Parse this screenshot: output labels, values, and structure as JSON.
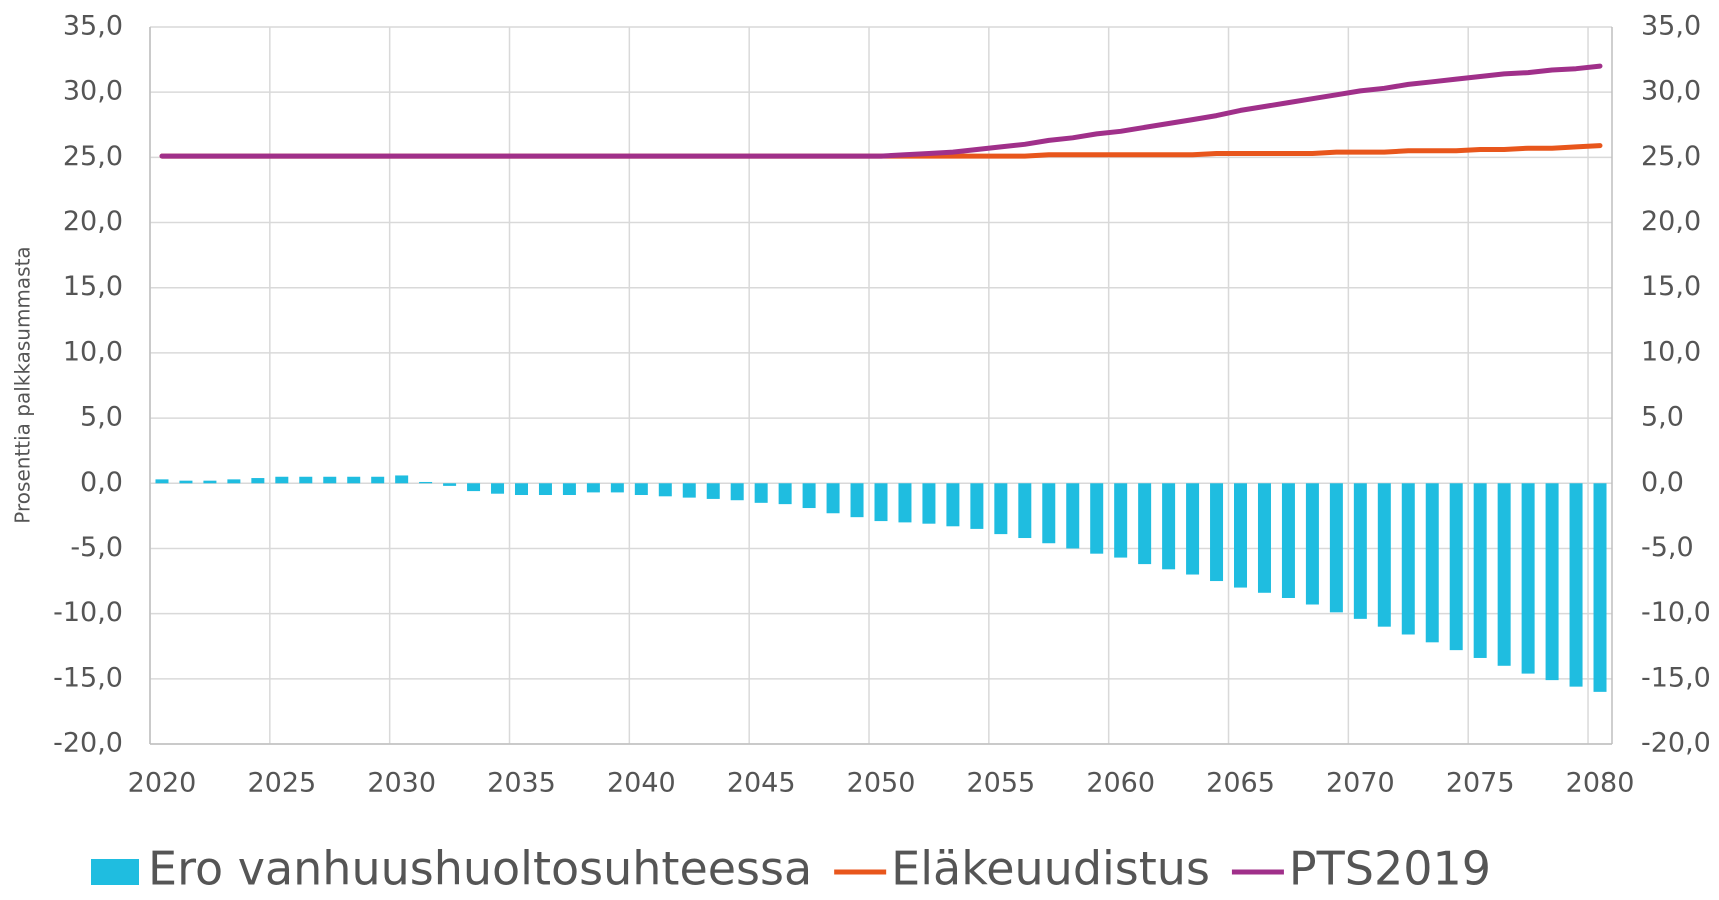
{
  "chart_data": {
    "type": "bar_line",
    "y_label": "Prosenttia palkkasummasta",
    "x": [
      2020,
      2021,
      2022,
      2023,
      2024,
      2025,
      2026,
      2027,
      2028,
      2029,
      2030,
      2031,
      2032,
      2033,
      2034,
      2035,
      2036,
      2037,
      2038,
      2039,
      2040,
      2041,
      2042,
      2043,
      2044,
      2045,
      2046,
      2047,
      2048,
      2049,
      2050,
      2051,
      2052,
      2053,
      2054,
      2055,
      2056,
      2057,
      2058,
      2059,
      2060,
      2061,
      2062,
      2063,
      2064,
      2065,
      2066,
      2067,
      2068,
      2069,
      2070,
      2071,
      2072,
      2073,
      2074,
      2075,
      2076,
      2077,
      2078,
      2079,
      2080
    ],
    "xlim": [
      2020,
      2081
    ],
    "xticks": [
      2020,
      2025,
      2030,
      2035,
      2040,
      2045,
      2050,
      2055,
      2060,
      2065,
      2070,
      2075,
      2080
    ],
    "ylim": [
      -20,
      35
    ],
    "yticks": [
      {
        "value": -20,
        "label": "-20,0"
      },
      {
        "value": -15,
        "label": "-15,0"
      },
      {
        "value": -10,
        "label": "-10,0"
      },
      {
        "value": -5,
        "label": "-5,0"
      },
      {
        "value": 0,
        "label": "0,0"
      },
      {
        "value": 5,
        "label": "5,0"
      },
      {
        "value": 10,
        "label": "10,0"
      },
      {
        "value": 15,
        "label": "15,0"
      },
      {
        "value": 20,
        "label": "20,0"
      },
      {
        "value": 25,
        "label": "25,0"
      },
      {
        "value": 30,
        "label": "30,0"
      },
      {
        "value": 35,
        "label": "35,0"
      }
    ],
    "grid": true,
    "legend": "bottom",
    "series": [
      {
        "name": "Ero vanhuushuoltosuhteessa",
        "type": "bar",
        "color": "#1fbde0",
        "values": [
          0.3,
          0.2,
          0.2,
          0.3,
          0.4,
          0.5,
          0.5,
          0.5,
          0.5,
          0.5,
          0.6,
          0.1,
          -0.2,
          -0.6,
          -0.8,
          -0.9,
          -0.9,
          -0.9,
          -0.7,
          -0.7,
          -0.9,
          -1.0,
          -1.1,
          -1.2,
          -1.3,
          -1.5,
          -1.6,
          -1.9,
          -2.3,
          -2.6,
          -2.9,
          -3.0,
          -3.1,
          -3.3,
          -3.5,
          -3.9,
          -4.2,
          -4.6,
          -5.0,
          -5.4,
          -5.7,
          -6.2,
          -6.6,
          -7.0,
          -7.5,
          -8.0,
          -8.4,
          -8.8,
          -9.3,
          -9.9,
          -10.4,
          -11.0,
          -11.6,
          -12.2,
          -12.8,
          -13.4,
          -14.0,
          -14.6,
          -15.1,
          -15.6,
          -16.0
        ]
      },
      {
        "name": "Eläkeuudistus",
        "type": "line",
        "color": "#e8561c",
        "values": [
          25.1,
          25.1,
          25.1,
          25.1,
          25.1,
          25.1,
          25.1,
          25.1,
          25.1,
          25.1,
          25.1,
          25.1,
          25.1,
          25.1,
          25.1,
          25.1,
          25.1,
          25.1,
          25.1,
          25.1,
          25.1,
          25.1,
          25.1,
          25.1,
          25.1,
          25.1,
          25.1,
          25.1,
          25.1,
          25.1,
          25.1,
          25.1,
          25.1,
          25.1,
          25.1,
          25.1,
          25.1,
          25.2,
          25.2,
          25.2,
          25.2,
          25.2,
          25.2,
          25.2,
          25.3,
          25.3,
          25.3,
          25.3,
          25.3,
          25.4,
          25.4,
          25.4,
          25.5,
          25.5,
          25.5,
          25.6,
          25.6,
          25.7,
          25.7,
          25.8,
          25.9
        ]
      },
      {
        "name": "PTS2019",
        "type": "line",
        "color": "#a0308a",
        "values": [
          25.1,
          25.1,
          25.1,
          25.1,
          25.1,
          25.1,
          25.1,
          25.1,
          25.1,
          25.1,
          25.1,
          25.1,
          25.1,
          25.1,
          25.1,
          25.1,
          25.1,
          25.1,
          25.1,
          25.1,
          25.1,
          25.1,
          25.1,
          25.1,
          25.1,
          25.1,
          25.1,
          25.1,
          25.1,
          25.1,
          25.1,
          25.2,
          25.3,
          25.4,
          25.6,
          25.8,
          26.0,
          26.3,
          26.5,
          26.8,
          27.0,
          27.3,
          27.6,
          27.9,
          28.2,
          28.6,
          28.9,
          29.2,
          29.5,
          29.8,
          30.1,
          30.3,
          30.6,
          30.8,
          31.0,
          31.2,
          31.4,
          31.5,
          31.7,
          31.8,
          32.0
        ]
      }
    ]
  }
}
